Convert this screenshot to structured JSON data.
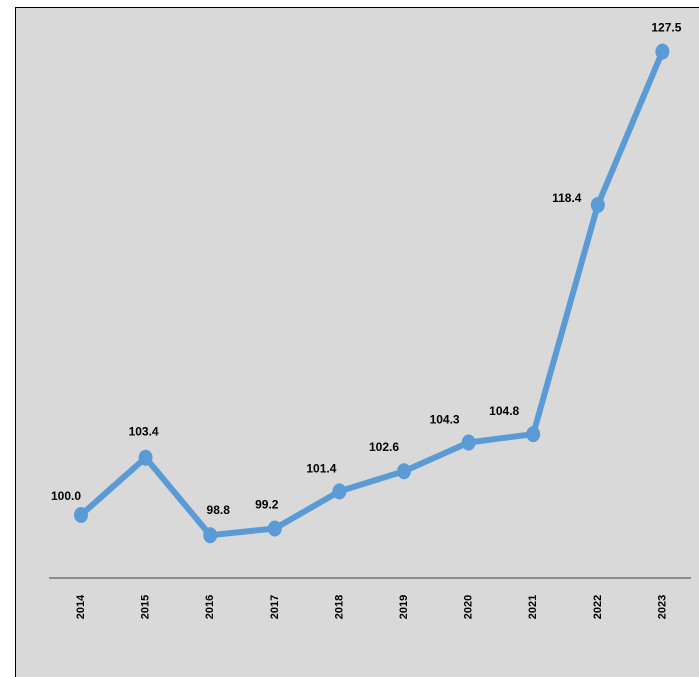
{
  "chart_data": {
    "type": "line",
    "title": "",
    "xlabel": "",
    "ylabel": "",
    "categories": [
      "2014",
      "2015",
      "2016",
      "2017",
      "2018",
      "2019",
      "2020",
      "2021",
      "2022",
      "2023"
    ],
    "series": [
      {
        "values": [
          100.0,
          103.4,
          98.8,
          99.2,
          101.4,
          102.6,
          104.3,
          104.8,
          118.4,
          127.5
        ],
        "labels": [
          "100.0",
          "103.4",
          "98.8",
          "99.2",
          "101.4",
          "102.6",
          "104.3",
          "104.8",
          "118.4",
          "127.5"
        ],
        "color": "#5b9bd5"
      }
    ],
    "grid": false,
    "legend": "none",
    "data_labels": true,
    "tick_label_orientation": "vertical"
  },
  "colors": {
    "plot_background": "#d9d9d9",
    "line": "#5b9bd5",
    "axis": "#404040"
  }
}
